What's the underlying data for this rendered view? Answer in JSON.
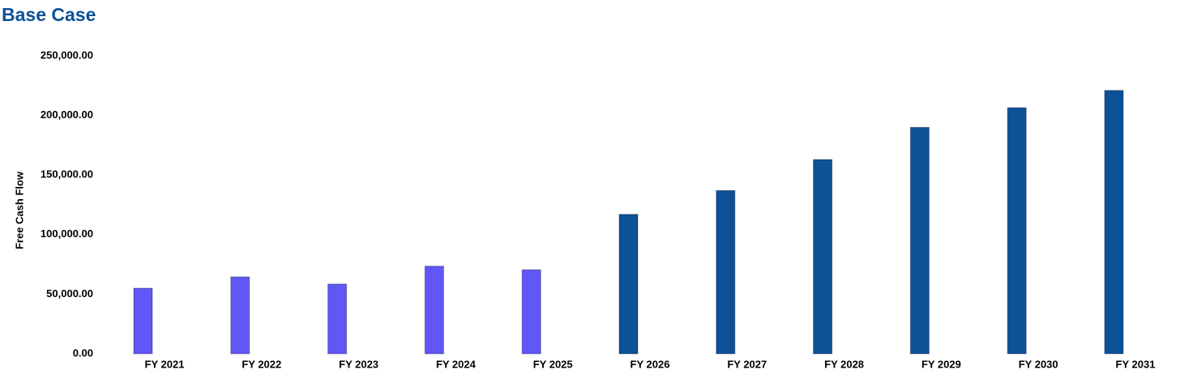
{
  "chart_data": {
    "type": "bar",
    "title": "Base Case",
    "y_label": "Free Cash Flow",
    "categories": [
      "FY 2021",
      "FY 2022",
      "FY 2023",
      "FY 2024",
      "FY 2025",
      "FY 2026",
      "FY 2027",
      "FY 2028",
      "FY 2029",
      "FY 2030",
      "FY 2031"
    ],
    "values": [
      55000,
      64500,
      58500,
      73500,
      70500,
      117000,
      137000,
      163000,
      190000,
      206500,
      221000
    ],
    "colors": [
      "#6157f7",
      "#6157f7",
      "#6157f7",
      "#6157f7",
      "#6157f7",
      "#0d5196",
      "#0d5196",
      "#0d5196",
      "#0d5196",
      "#0d5196",
      "#0d5196"
    ],
    "ylim": [
      0,
      250000
    ],
    "yticks": [
      {
        "value": 0,
        "label": "0.00"
      },
      {
        "value": 50000,
        "label": "50,000.00"
      },
      {
        "value": 100000,
        "label": "100,000.00"
      },
      {
        "value": 150000,
        "label": "150,000.00"
      },
      {
        "value": 200000,
        "label": "200,000.00"
      },
      {
        "value": 250000,
        "label": "250,000.00"
      }
    ],
    "grid": false
  }
}
